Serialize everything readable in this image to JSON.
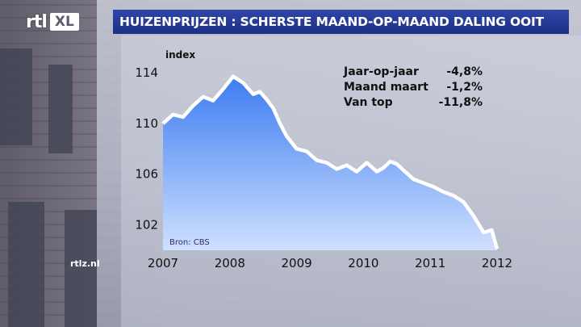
{
  "brand": {
    "logo_rtl": "rtl",
    "logo_xl": "XL",
    "watermark": "rtlz.nl"
  },
  "title": "HUIZENPRIJZEN : SCHERSTE MAAND-OP-MAAND DALING OOIT",
  "stats": [
    {
      "label": "Jaar-op-jaar",
      "value": "-4,8%"
    },
    {
      "label": "Maand maart",
      "value": "-1,2%"
    },
    {
      "label": "Van top",
      "value": "-11,8%"
    }
  ],
  "source": "Bron: CBS",
  "colors": {
    "title_bg": "#24389a",
    "area_top": "#3d7cf0",
    "area_bottom": "#cfe0ff",
    "line": "#ffffff"
  },
  "chart_data": {
    "type": "area",
    "ylabel": "index",
    "ylim": [
      100,
      114
    ],
    "yticks": [
      102,
      106,
      110,
      114
    ],
    "xlim": [
      2007,
      2012
    ],
    "xticks": [
      2007,
      2008,
      2009,
      2010,
      2011,
      2012
    ],
    "series": [
      {
        "x": [
          2007.0,
          2007.15,
          2007.3,
          2007.45,
          2007.6,
          2007.75,
          2007.9,
          2008.05,
          2008.2,
          2008.35,
          2008.45,
          2008.55,
          2008.65,
          2008.75,
          2008.85,
          2009.0,
          2009.15,
          2009.3,
          2009.45,
          2009.6,
          2009.75,
          2009.9,
          2010.05,
          2010.2,
          2010.3,
          2010.4,
          2010.5,
          2010.6,
          2010.75,
          2010.9,
          2011.05,
          2011.2,
          2011.35,
          2011.5,
          2011.65,
          2011.8,
          2011.92,
          2012.0
        ],
        "values": [
          110.0,
          110.7,
          110.5,
          111.4,
          112.1,
          111.8,
          112.7,
          113.7,
          113.2,
          112.3,
          112.5,
          111.9,
          111.2,
          110.0,
          109.0,
          108.0,
          107.8,
          107.1,
          106.9,
          106.4,
          106.7,
          106.2,
          106.9,
          106.2,
          106.5,
          107.0,
          106.8,
          106.3,
          105.6,
          105.3,
          105.0,
          104.6,
          104.3,
          103.8,
          102.7,
          101.4,
          101.6,
          100.1
        ]
      }
    ]
  }
}
